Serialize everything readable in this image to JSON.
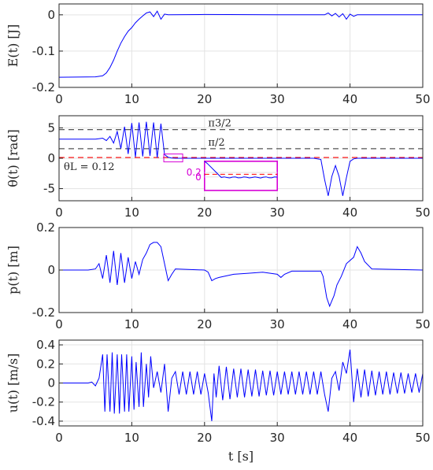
{
  "chart_data": [
    {
      "type": "line",
      "ylabel": "E(t) [J]",
      "xlim": [
        0,
        50
      ],
      "ylim": [
        -0.2,
        0.03
      ],
      "xticks": [
        "0",
        "10",
        "20",
        "30",
        "40",
        "50"
      ],
      "yticks": [
        {
          "value": 0,
          "label": "0"
        },
        {
          "value": -0.1,
          "label": "-0.1"
        },
        {
          "value": -0.2,
          "label": "-0.2"
        }
      ],
      "grid": true,
      "series": [
        {
          "color": "#0000ff",
          "x": [
            0,
            5,
            6,
            6.5,
            7,
            7.5,
            8,
            8.5,
            9,
            9.5,
            10,
            10.5,
            11,
            11.5,
            12,
            12.5,
            13,
            13.5,
            14,
            14.5,
            15,
            20,
            30,
            36.5,
            37,
            37.5,
            38,
            38.5,
            39,
            39.5,
            40,
            40.5,
            41,
            50
          ],
          "y": [
            -0.172,
            -0.171,
            -0.168,
            -0.16,
            -0.145,
            -0.125,
            -0.1,
            -0.078,
            -0.06,
            -0.045,
            -0.035,
            -0.022,
            -0.012,
            -0.003,
            0.005,
            0.008,
            -0.005,
            0.01,
            -0.012,
            0.002,
            0,
            0.001,
            0,
            0,
            0.005,
            -0.003,
            0.004,
            -0.006,
            0.003,
            -0.012,
            0.002,
            -0.004,
            0,
            0
          ]
        }
      ]
    },
    {
      "type": "line",
      "ylabel": "θ(t) [rad]",
      "xlim": [
        0,
        50
      ],
      "ylim": [
        -7,
        7
      ],
      "xticks": [
        "0",
        "10",
        "20",
        "30",
        "40",
        "50"
      ],
      "yticks": [
        {
          "value": 5,
          "label": "5"
        },
        {
          "value": 0,
          "label": "0"
        },
        {
          "value": -5,
          "label": "-5"
        }
      ],
      "grid": true,
      "reference_lines": [
        {
          "value": 4.712,
          "label": "π3/2",
          "color": "#555555",
          "style": "dashed"
        },
        {
          "value": 1.571,
          "label": "π/2",
          "color": "#555555",
          "style": "dashed"
        },
        {
          "value": 0.12,
          "label": "θL = 0.12",
          "color": "#ff0000",
          "style": "dashed"
        }
      ],
      "inset": {
        "x_range": [
          14.4,
          17
        ],
        "y_range": [
          -0.6,
          0.7
        ],
        "yticks": [
          {
            "value": 0.2,
            "label": "0.2"
          },
          {
            "value": 0,
            "label": "0"
          }
        ],
        "color": "#d600d6"
      },
      "series": [
        {
          "color": "#0000ff",
          "x": [
            0,
            5,
            6,
            6.5,
            7,
            7.5,
            8,
            8.5,
            9,
            9.5,
            10,
            10.5,
            11,
            11.5,
            12,
            12.5,
            13,
            13.5,
            14,
            14.5,
            15,
            15.5,
            16,
            17,
            20,
            30,
            35,
            36,
            36.5,
            37,
            37.5,
            38,
            38.5,
            39,
            39.5,
            40,
            40.5,
            41,
            50
          ],
          "y": [
            3.14,
            3.14,
            3.3,
            2.9,
            3.6,
            2.5,
            4.4,
            1.6,
            5.2,
            0.7,
            5.8,
            0.2,
            5.9,
            0.3,
            6.0,
            0.4,
            5.9,
            0.1,
            5.7,
            0.6,
            0.15,
            0.02,
            0,
            0,
            0,
            0,
            0,
            -0.2,
            -3.5,
            -6.2,
            -3.0,
            -1.2,
            -3.0,
            -6.2,
            -3.2,
            -0.5,
            -0.1,
            0,
            0
          ]
        }
      ]
    },
    {
      "type": "line",
      "ylabel": "p(t) [m]",
      "xlim": [
        0,
        50
      ],
      "ylim": [
        -0.2,
        0.2
      ],
      "xticks": [
        "0",
        "10",
        "20",
        "30",
        "40",
        "50"
      ],
      "yticks": [
        {
          "value": 0.2,
          "label": "0.2"
        },
        {
          "value": 0,
          "label": "0"
        },
        {
          "value": -0.2,
          "label": "-0.2"
        }
      ],
      "grid": true,
      "series": [
        {
          "color": "#0000ff",
          "x": [
            0,
            4,
            5,
            5.5,
            6,
            6.5,
            7,
            7.5,
            8,
            8.5,
            9,
            9.5,
            10,
            10.5,
            11,
            11.5,
            12,
            12.5,
            13,
            13.5,
            14,
            14.5,
            15,
            15.5,
            16,
            20,
            20.5,
            21,
            21.5,
            22,
            24,
            26,
            28,
            30,
            30.5,
            31,
            32,
            36,
            36.3,
            36.8,
            37.2,
            37.8,
            38.2,
            38.8,
            39.5,
            40.5,
            41,
            41.5,
            42,
            43,
            50
          ],
          "y": [
            0,
            0,
            0.005,
            0.03,
            -0.04,
            0.07,
            -0.06,
            0.09,
            -0.07,
            0.08,
            -0.06,
            0.06,
            -0.04,
            0.04,
            -0.02,
            0.05,
            0.08,
            0.12,
            0.13,
            0.13,
            0.11,
            0.03,
            -0.05,
            -0.02,
            0.005,
            0,
            -0.01,
            -0.05,
            -0.04,
            -0.035,
            -0.02,
            -0.015,
            -0.01,
            -0.02,
            -0.035,
            -0.02,
            -0.005,
            -0.005,
            -0.03,
            -0.13,
            -0.17,
            -0.12,
            -0.07,
            -0.03,
            0.03,
            0.06,
            0.11,
            0.08,
            0.04,
            0.005,
            0
          ]
        }
      ]
    },
    {
      "type": "line",
      "ylabel": "u(t) [m/s]",
      "xlabel": "t [s]",
      "xlim": [
        0,
        50
      ],
      "ylim": [
        -0.45,
        0.45
      ],
      "xticks": [
        "0",
        "10",
        "20",
        "30",
        "40",
        "50"
      ],
      "yticks": [
        {
          "value": 0.4,
          "label": "0.4"
        },
        {
          "value": 0.2,
          "label": "0.2"
        },
        {
          "value": 0,
          "label": "0"
        },
        {
          "value": -0.2,
          "label": "-0.2"
        },
        {
          "value": -0.4,
          "label": "-0.4"
        }
      ],
      "grid": true,
      "series": [
        {
          "color": "#0000ff",
          "x": [
            0,
            4,
            4.5,
            5,
            5.5,
            6,
            6.3,
            6.6,
            7,
            7.3,
            7.6,
            8,
            8.3,
            8.6,
            9,
            9.3,
            9.6,
            10,
            10.3,
            10.6,
            11,
            11.3,
            11.6,
            12,
            12.3,
            12.6,
            13,
            13.5,
            14,
            14.5,
            15,
            15.5,
            16,
            16.5,
            17,
            17.5,
            18,
            18.5,
            19,
            19.5,
            20,
            20.5,
            21,
            21.3,
            21.6,
            22,
            22.5,
            23,
            23.5,
            24,
            24.5,
            25,
            25.5,
            26,
            26.5,
            27,
            27.5,
            28,
            28.5,
            29,
            29.5,
            30,
            30.5,
            31,
            31.5,
            32,
            32.5,
            33,
            33.5,
            34,
            34.5,
            35,
            35.5,
            36,
            36.5,
            37,
            37.5,
            38,
            38.5,
            39,
            39.5,
            40,
            40.5,
            41,
            41.5,
            42,
            42.5,
            43,
            43.5,
            44,
            44.5,
            45,
            45.5,
            46,
            46.5,
            47,
            47.5,
            48,
            48.5,
            49,
            49.5,
            50
          ],
          "y": [
            0,
            0,
            0.01,
            -0.03,
            0.05,
            0.3,
            -0.3,
            0.3,
            -0.3,
            0.32,
            -0.32,
            0.3,
            -0.32,
            0.3,
            -0.3,
            0.3,
            -0.3,
            0.28,
            -0.28,
            0.22,
            -0.25,
            0.32,
            -0.25,
            0.2,
            -0.15,
            0.28,
            -0.05,
            0.12,
            -0.1,
            0.2,
            -0.3,
            0.05,
            0.12,
            -0.12,
            0.12,
            -0.12,
            0.12,
            -0.12,
            0.12,
            -0.12,
            0.1,
            -0.1,
            -0.4,
            0.1,
            -0.15,
            0.18,
            -0.18,
            0.17,
            -0.17,
            0.15,
            -0.15,
            0.15,
            -0.15,
            0.14,
            -0.14,
            0.14,
            -0.14,
            0.13,
            -0.13,
            0.13,
            -0.13,
            0.12,
            -0.12,
            0.12,
            -0.12,
            0.12,
            -0.12,
            0.12,
            -0.12,
            0.12,
            -0.12,
            0.12,
            -0.12,
            0.12,
            -0.12,
            -0.3,
            0.05,
            0.12,
            -0.08,
            0.22,
            0.1,
            0.35,
            -0.2,
            0.15,
            -0.15,
            0.14,
            -0.14,
            0.13,
            -0.13,
            0.12,
            -0.12,
            0.12,
            -0.12,
            0.11,
            -0.11,
            0.11,
            -0.11,
            0.1,
            -0.1,
            0.1,
            -0.1,
            0.1
          ]
        }
      ]
    }
  ]
}
